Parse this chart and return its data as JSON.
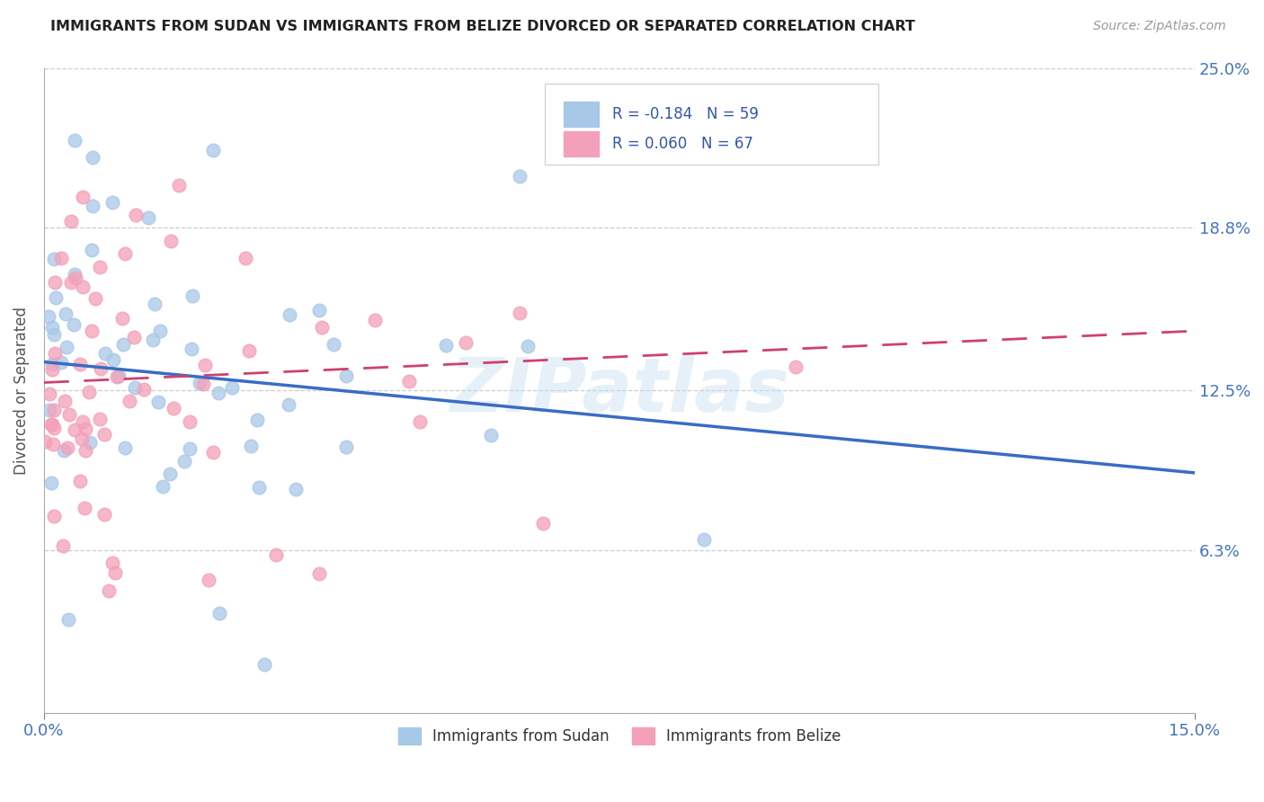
{
  "title": "IMMIGRANTS FROM SUDAN VS IMMIGRANTS FROM BELIZE DIVORCED OR SEPARATED CORRELATION CHART",
  "source": "Source: ZipAtlas.com",
  "xlim": [
    0.0,
    0.15
  ],
  "ylim": [
    0.0,
    0.25
  ],
  "ylabel": "Divorced or Separated",
  "legend_bottom": [
    "Immigrants from Sudan",
    "Immigrants from Belize"
  ],
  "sudan_R": -0.184,
  "sudan_N": 59,
  "belize_R": 0.06,
  "belize_N": 67,
  "sudan_color": "#a8c8e8",
  "belize_color": "#f4a0b8",
  "sudan_line_color": "#3a6cc4",
  "belize_line_color": "#d04070",
  "watermark": "ZIPatlas",
  "yticks": [
    0.063,
    0.125,
    0.188,
    0.25
  ],
  "ytick_labels": [
    "6.3%",
    "12.5%",
    "18.8%",
    "25.0%"
  ],
  "xticks": [
    0.0,
    0.15
  ],
  "xtick_labels": [
    "0.0%",
    "15.0%"
  ],
  "sudan_line_x0": 0.0,
  "sudan_line_y0": 0.136,
  "sudan_line_x1": 0.15,
  "sudan_line_y1": 0.093,
  "belize_line_x0": 0.0,
  "belize_line_y0": 0.128,
  "belize_line_x1": 0.15,
  "belize_line_y1": 0.148
}
